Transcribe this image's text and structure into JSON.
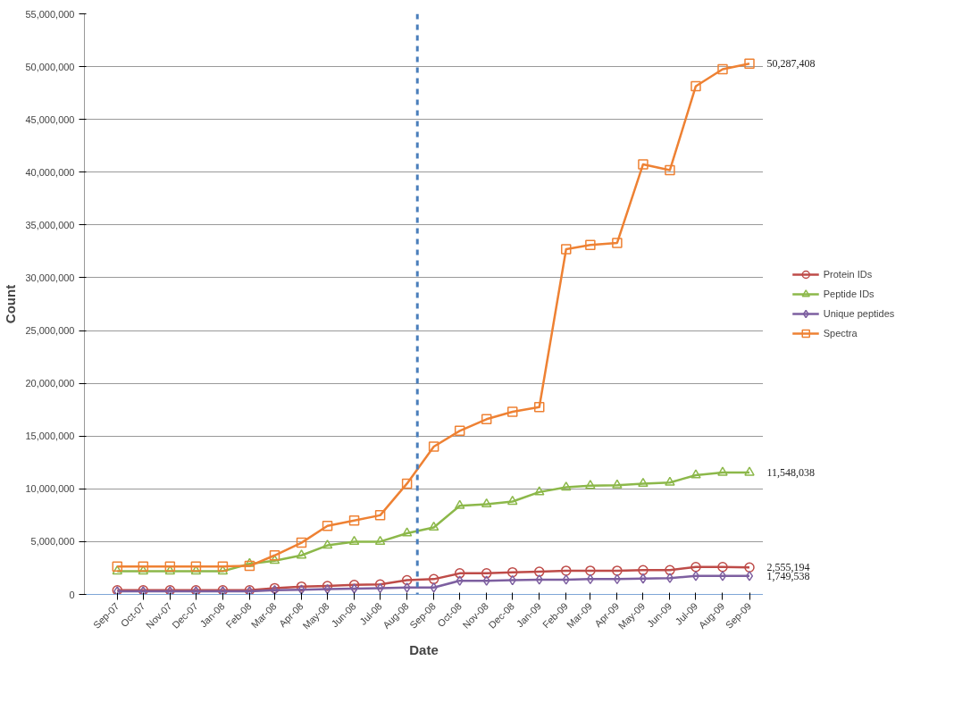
{
  "chart_data": {
    "type": "line",
    "xlabel": "Date",
    "ylabel": "Count",
    "x": [
      "2007-09",
      "2007-10",
      "2007-11",
      "2007-12",
      "2008-01",
      "2008-02",
      "2008-03",
      "2008-04",
      "2008-05",
      "2008-06",
      "2008-07",
      "2008-08",
      "2008-09",
      "2008-10",
      "2008-11",
      "2008-12",
      "2009-01",
      "2009-02",
      "2009-03",
      "2009-04",
      "2009-05",
      "2009-06",
      "2009-07",
      "2009-08",
      "2009-09"
    ],
    "xlim": [
      "2007-07-25",
      "2009-09-17"
    ],
    "xticks": [
      {
        "value": "2007-09",
        "label": "Sep-07"
      },
      {
        "value": "2007-10",
        "label": "Oct-07"
      },
      {
        "value": "2007-11",
        "label": "Nov-07"
      },
      {
        "value": "2007-12",
        "label": "Dec-07"
      },
      {
        "value": "2008-01",
        "label": "Jan-08"
      },
      {
        "value": "2008-02",
        "label": "Feb-08"
      },
      {
        "value": "2008-03",
        "label": "Mar-08"
      },
      {
        "value": "2008-04",
        "label": "Apr-08"
      },
      {
        "value": "2008-05",
        "label": "May-08"
      },
      {
        "value": "2008-06",
        "label": "Jun-08"
      },
      {
        "value": "2008-07",
        "label": "Jul-08"
      },
      {
        "value": "2008-08",
        "label": "Aug-08"
      },
      {
        "value": "2008-09",
        "label": "Sep-08"
      },
      {
        "value": "2008-10",
        "label": "Oct-08"
      },
      {
        "value": "2008-11",
        "label": "Nov-08"
      },
      {
        "value": "2008-12",
        "label": "Dec-08"
      },
      {
        "value": "2009-01",
        "label": "Jan-09"
      },
      {
        "value": "2009-02",
        "label": "Feb-09"
      },
      {
        "value": "2009-03",
        "label": "Mar-09"
      },
      {
        "value": "2009-04",
        "label": "Apr-09"
      },
      {
        "value": "2009-05",
        "label": "May-09"
      },
      {
        "value": "2009-06",
        "label": "Jun-09"
      },
      {
        "value": "2009-07",
        "label": "Jul-09"
      },
      {
        "value": "2009-08",
        "label": "Aug-09"
      },
      {
        "value": "2009-09",
        "label": "Sep-09"
      }
    ],
    "ylim": [
      0,
      55000000
    ],
    "yticks": [
      {
        "value": 0,
        "label": "0"
      },
      {
        "value": 5000000,
        "label": "5,000,000"
      },
      {
        "value": 10000000,
        "label": "10,000,000"
      },
      {
        "value": 15000000,
        "label": "15,000,000"
      },
      {
        "value": 20000000,
        "label": "20,000,000"
      },
      {
        "value": 25000000,
        "label": "25,000,000"
      },
      {
        "value": 30000000,
        "label": "30,000,000"
      },
      {
        "value": 35000000,
        "label": "35,000,000"
      },
      {
        "value": 40000000,
        "label": "40,000,000"
      },
      {
        "value": 45000000,
        "label": "45,000,000"
      },
      {
        "value": 50000000,
        "label": "50,000,000"
      },
      {
        "value": 55000000,
        "label": "55,000,000"
      }
    ],
    "grid": "y",
    "legend": "right",
    "line_style": "solid",
    "ref_lines": [
      {
        "axis": "x",
        "value": "2008-08-13",
        "color": "#4a7ebb",
        "line_style": "dashed"
      }
    ],
    "series": [
      {
        "name": "Protein IDs",
        "color": "#be4b48",
        "marker": "circle",
        "values": [
          400000,
          400000,
          400000,
          400000,
          400000,
          400000,
          600000,
          750000,
          800000,
          900000,
          950000,
          1350000,
          1450000,
          2000000,
          2000000,
          2100000,
          2150000,
          2250000,
          2250000,
          2250000,
          2300000,
          2300000,
          2600000,
          2600000,
          2555194
        ],
        "value_labels": [
          null,
          null,
          null,
          null,
          null,
          null,
          null,
          null,
          null,
          null,
          null,
          null,
          null,
          null,
          null,
          null,
          null,
          null,
          null,
          null,
          null,
          null,
          null,
          null,
          "2,555,194"
        ]
      },
      {
        "name": "Peptide IDs",
        "color": "#8cb84a",
        "marker": "triangle",
        "values": [
          2200000,
          2200000,
          2200000,
          2200000,
          2200000,
          2900000,
          3200000,
          3700000,
          4650000,
          5000000,
          5000000,
          5800000,
          6350000,
          8400000,
          8550000,
          8800000,
          9700000,
          10150000,
          10300000,
          10350000,
          10500000,
          10600000,
          11300000,
          11550000,
          11548038
        ],
        "value_labels": [
          null,
          null,
          null,
          null,
          null,
          null,
          null,
          null,
          null,
          null,
          null,
          null,
          null,
          null,
          null,
          null,
          null,
          null,
          null,
          null,
          null,
          null,
          null,
          null,
          "11,548,038"
        ]
      },
      {
        "name": "Unique peptides",
        "color": "#7d5fa0",
        "marker": "diamond",
        "values": [
          300000,
          300000,
          300000,
          300000,
          300000,
          300000,
          400000,
          450000,
          500000,
          550000,
          600000,
          650000,
          650000,
          1300000,
          1300000,
          1350000,
          1400000,
          1400000,
          1450000,
          1450000,
          1500000,
          1550000,
          1750000,
          1750000,
          1749538
        ],
        "value_labels": [
          null,
          null,
          null,
          null,
          null,
          null,
          null,
          null,
          null,
          null,
          null,
          null,
          null,
          null,
          null,
          null,
          null,
          null,
          null,
          null,
          null,
          null,
          null,
          null,
          "1,749,538"
        ]
      },
      {
        "name": "Spectra",
        "color": "#ee8133",
        "marker": "square",
        "values": [
          2650000,
          2650000,
          2650000,
          2650000,
          2650000,
          2700000,
          3700000,
          4900000,
          6500000,
          7000000,
          7500000,
          10500000,
          14000000,
          15500000,
          16600000,
          17300000,
          17750000,
          32700000,
          33100000,
          33300000,
          40750000,
          40200000,
          48150000,
          49750000,
          50287408
        ],
        "value_labels": [
          null,
          null,
          null,
          null,
          null,
          null,
          null,
          null,
          null,
          null,
          null,
          null,
          null,
          null,
          null,
          null,
          null,
          null,
          null,
          null,
          null,
          null,
          null,
          null,
          "50,287,408"
        ]
      }
    ]
  }
}
